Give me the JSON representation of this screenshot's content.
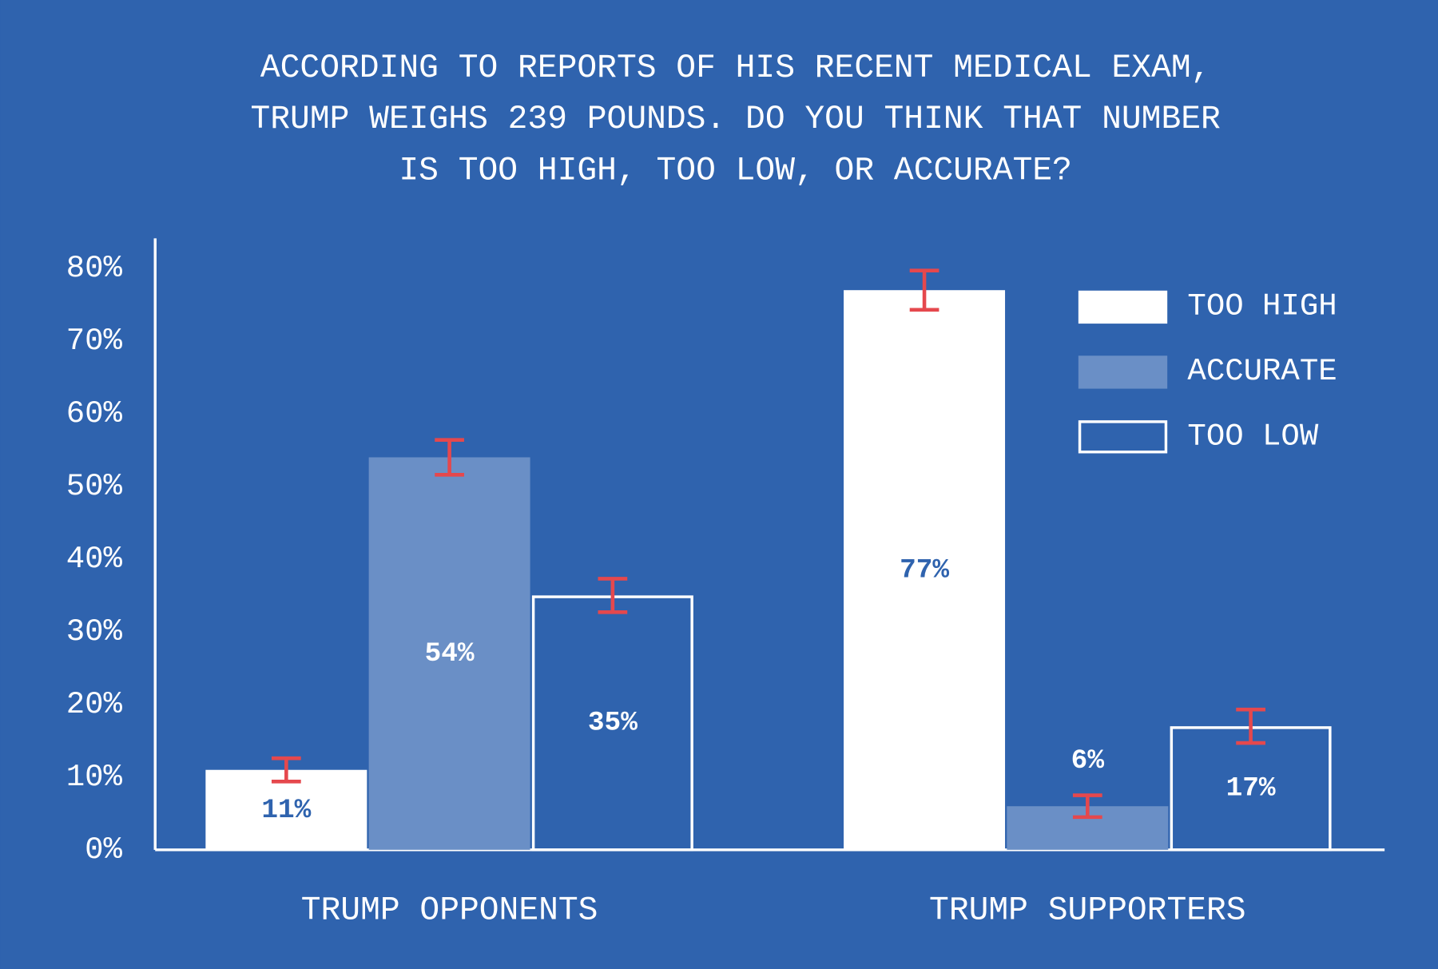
{
  "chart_data": {
    "type": "bar",
    "title": [
      "ACCORDING TO REPORTS OF HIS RECENT MEDICAL EXAM,",
      "TRUMP WEIGHS 239 POUNDS. DO YOU THINK THAT NUMBER",
      "IS TOO HIGH, TOO LOW, OR ACCURATE?"
    ],
    "categories": [
      "TRUMP OPPONENTS",
      "TRUMP SUPPORTERS"
    ],
    "series": [
      {
        "name": "TOO HIGH",
        "color": "#ffffff",
        "outline": false,
        "values": [
          11,
          77
        ],
        "value_labels": [
          "11%",
          "77%"
        ],
        "errors": [
          1.6,
          2.7
        ]
      },
      {
        "name": "ACCURATE",
        "color": "#6a8fc6",
        "outline": false,
        "values": [
          54,
          6
        ],
        "value_labels": [
          "54%",
          "6%"
        ],
        "errors": [
          2.4,
          1.5
        ]
      },
      {
        "name": "TOO LOW",
        "color": "#ffffff",
        "outline": true,
        "values": [
          35,
          17
        ],
        "value_labels": [
          "35%",
          "17%"
        ],
        "errors": [
          2.3,
          2.3
        ]
      }
    ],
    "error_color": "#e5484d",
    "ylim": [
      0,
      84
    ],
    "yticks": [
      {
        "value": 0,
        "label": "0%"
      },
      {
        "value": 10,
        "label": "10%"
      },
      {
        "value": 20,
        "label": "20%"
      },
      {
        "value": 30,
        "label": "30%"
      },
      {
        "value": 40,
        "label": "40%"
      },
      {
        "value": 50,
        "label": "50%"
      },
      {
        "value": 60,
        "label": "60%"
      },
      {
        "value": 70,
        "label": "70%"
      },
      {
        "value": 80,
        "label": "80%"
      }
    ],
    "grid": false,
    "legend": "top-right"
  }
}
